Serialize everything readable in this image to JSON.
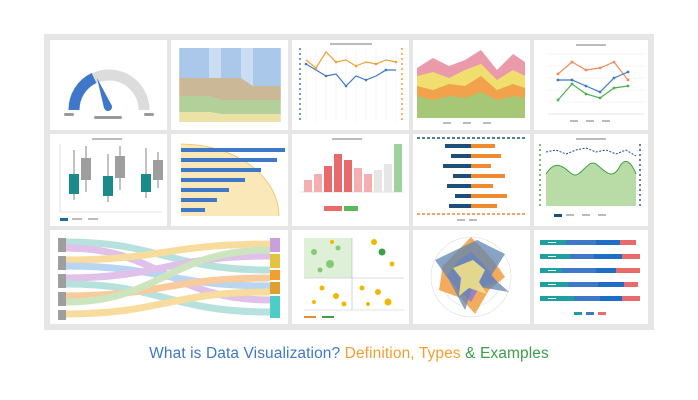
{
  "colors": {
    "blue": "#3f78c8",
    "orange": "#f0a030",
    "green": "#3aa04a",
    "border": "#e6e6e6"
  },
  "caption": {
    "part1": "What is Data Visualization?",
    "part2": "Definition, Types",
    "part3": "&",
    "part4": "Examples"
  },
  "tiles": [
    {
      "name": "gauge-chart-thumbnail",
      "type": "gauge",
      "level": 0.33
    },
    {
      "name": "stacked-flow-chart-thumbnail",
      "type": "stacked-band"
    },
    {
      "name": "multi-axis-line-chart-thumbnail",
      "type": "line"
    },
    {
      "name": "stacked-area-chart-thumbnail",
      "type": "area"
    },
    {
      "name": "three-series-line-chart-thumbnail",
      "type": "line"
    },
    {
      "name": "box-plot-thumbnail",
      "type": "boxplot"
    },
    {
      "name": "horizontal-bar-chart-thumbnail",
      "type": "bar"
    },
    {
      "name": "histogram-chart-thumbnail",
      "type": "bar"
    },
    {
      "name": "diverging-bar-chart-thumbnail",
      "type": "bar"
    },
    {
      "name": "area-line-combo-chart-thumbnail",
      "type": "area"
    },
    {
      "name": "sankey-diagram-thumbnail",
      "type": "sankey"
    },
    {
      "name": "quadrant-scatter-chart-thumbnail",
      "type": "scatter"
    },
    {
      "name": "radar-chart-thumbnail",
      "type": "radar"
    },
    {
      "name": "stacked-bar-chart-thumbnail",
      "type": "bar"
    }
  ]
}
